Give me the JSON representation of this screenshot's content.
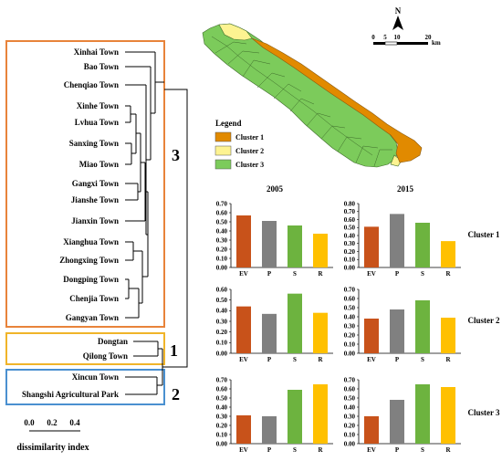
{
  "dendrogram": {
    "clusters": [
      {
        "number": "3",
        "color": "#e8833a",
        "towns": [
          "Xinhai Town",
          "Bao Town",
          "Chenqiao Town",
          "Xinhe Town",
          "Lvhua Town",
          "Sanxing Town",
          "Miao Town",
          "Gangxi Town",
          "Jianshe Town",
          "Jianxin Town",
          "Xianghua Town",
          "Zhongxing Town",
          "Dongping Town",
          "Chenjia Town",
          "Gangyan Town"
        ]
      },
      {
        "number": "1",
        "color": "#f0b429",
        "towns": [
          "Dongtan",
          "Qilong Town"
        ]
      },
      {
        "number": "2",
        "color": "#4a90d0",
        "towns": [
          "Xincun Town",
          "Shangshi Agricultural Park"
        ]
      }
    ],
    "axis_ticks": [
      "0.0",
      "0.2",
      "0.4"
    ],
    "axis_label": "dissimilarity index"
  },
  "map": {
    "north_label": "N",
    "scale_ticks": [
      "0",
      "5",
      "10",
      "20"
    ],
    "scale_unit": "km",
    "legend_title": "Legend",
    "legend_items": [
      {
        "label": "Cluster 1",
        "color": "#e18a00"
      },
      {
        "label": "Cluster 2",
        "color": "#fdf391"
      },
      {
        "label": "Cluster 3",
        "color": "#7ccb5b"
      }
    ]
  },
  "chart_data": {
    "type": "bar",
    "columns": [
      "2005",
      "2015"
    ],
    "categories": [
      "EV",
      "P",
      "S",
      "R"
    ],
    "colors": [
      "#c8521a",
      "#808080",
      "#6db33f",
      "#ffc000"
    ],
    "panels": [
      {
        "row": "Cluster 1",
        "col": "2005",
        "values": [
          0.57,
          0.51,
          0.46,
          0.37
        ],
        "ylim": [
          0,
          0.7
        ],
        "yticks": [
          "0.00",
          "0.10",
          "0.20",
          "0.30",
          "0.40",
          "0.50",
          "0.60",
          "0.70"
        ]
      },
      {
        "row": "Cluster 1",
        "col": "2015",
        "values": [
          0.51,
          0.67,
          0.56,
          0.33
        ],
        "ylim": [
          0,
          0.8
        ],
        "yticks": [
          "0.00",
          "0.10",
          "0.20",
          "0.30",
          "0.40",
          "0.50",
          "0.60",
          "0.70",
          "0.80"
        ]
      },
      {
        "row": "Cluster 2",
        "col": "2005",
        "values": [
          0.44,
          0.37,
          0.56,
          0.38
        ],
        "ylim": [
          0,
          0.6
        ],
        "yticks": [
          "0.00",
          "0.10",
          "0.20",
          "0.30",
          "0.40",
          "0.50",
          "0.60"
        ]
      },
      {
        "row": "Cluster 2",
        "col": "2015",
        "values": [
          0.38,
          0.48,
          0.58,
          0.39
        ],
        "ylim": [
          0,
          0.7
        ],
        "yticks": [
          "0.00",
          "0.10",
          "0.20",
          "0.30",
          "0.40",
          "0.50",
          "0.60",
          "0.70"
        ]
      },
      {
        "row": "Cluster 3",
        "col": "2005",
        "values": [
          0.31,
          0.3,
          0.59,
          0.65
        ],
        "ylim": [
          0,
          0.7
        ],
        "yticks": [
          "0.00",
          "0.10",
          "0.20",
          "0.30",
          "0.40",
          "0.50",
          "0.60",
          "0.70"
        ]
      },
      {
        "row": "Cluster 3",
        "col": "2015",
        "values": [
          0.3,
          0.48,
          0.65,
          0.62
        ],
        "ylim": [
          0,
          0.7
        ],
        "yticks": [
          "0.00",
          "0.10",
          "0.20",
          "0.30",
          "0.40",
          "0.50",
          "0.60",
          "0.70"
        ]
      }
    ]
  }
}
